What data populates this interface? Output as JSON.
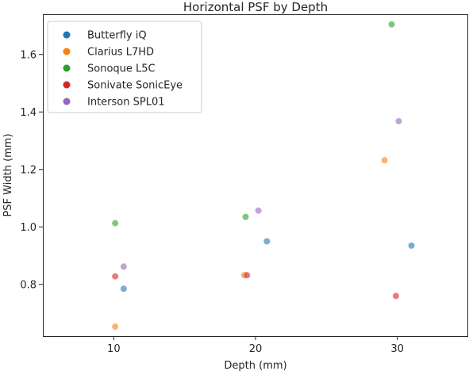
{
  "chart_data": {
    "type": "scatter",
    "title": "Horizontal PSF by Depth",
    "xlabel": "Depth (mm)",
    "ylabel": "PSF Width (mm)",
    "xlim": [
      5,
      35
    ],
    "ylim": [
      0.62,
      1.74
    ],
    "xticks": [
      10,
      20,
      30
    ],
    "yticks": [
      0.8,
      1.0,
      1.2,
      1.4,
      1.6
    ],
    "xtick_labels": [
      "10",
      "20",
      "30"
    ],
    "ytick_labels": [
      "0.8",
      "1.0",
      "1.2",
      "1.4",
      "1.6"
    ],
    "grid": false,
    "legend_position": "top-left",
    "series": [
      {
        "name": "Butterfly iQ",
        "color": "#1f77b4",
        "points": [
          [
            10.7,
            0.785
          ],
          [
            20.8,
            0.95
          ],
          [
            31.0,
            0.935
          ]
        ]
      },
      {
        "name": "Clarius L7HD",
        "color": "#ff7f0e",
        "points": [
          [
            10.1,
            0.653
          ],
          [
            19.2,
            0.832
          ],
          [
            29.1,
            1.232
          ]
        ]
      },
      {
        "name": "Sonoque L5C",
        "color": "#2ca02c",
        "points": [
          [
            10.1,
            1.013
          ],
          [
            19.3,
            1.035
          ],
          [
            29.6,
            1.705
          ]
        ]
      },
      {
        "name": "Sonivate SonicEye",
        "color": "#d62728",
        "points": [
          [
            10.1,
            0.828
          ],
          [
            19.4,
            0.832
          ],
          [
            29.9,
            0.76
          ]
        ]
      },
      {
        "name": "Interson SPL01",
        "color": "#9467bd",
        "points": [
          [
            10.7,
            0.862
          ],
          [
            20.2,
            1.057
          ],
          [
            30.1,
            1.368
          ]
        ]
      }
    ]
  }
}
